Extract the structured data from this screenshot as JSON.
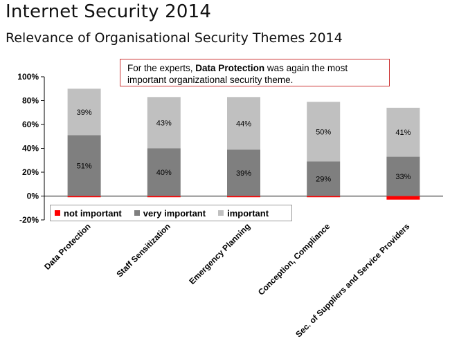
{
  "header": {
    "title": "Internet Security 2014",
    "subtitle": "Relevance of Organisational Security Themes 2014"
  },
  "callout": {
    "prefix": "For the experts, ",
    "highlight": "Data Protection",
    "suffix": " was again the most important organizational security theme."
  },
  "colors": {
    "not_important": "#ff0000",
    "very_important": "#7f7f7f",
    "important": "#c0c0c0",
    "callout_border": "#cc3333"
  },
  "chart_data": {
    "type": "bar",
    "stacked": true,
    "categories": [
      "Data Protection",
      "Staff Sensitization",
      "Emergency Planning",
      "Conception, Compliance",
      "Sec. of Suppliers and Service Providers"
    ],
    "series": [
      {
        "name": "not important",
        "values": [
          -1,
          -1,
          -1,
          -1,
          -3
        ],
        "color": "#ff0000"
      },
      {
        "name": "very important",
        "values": [
          51,
          40,
          39,
          29,
          33
        ],
        "color": "#7f7f7f"
      },
      {
        "name": "important",
        "values": [
          39,
          43,
          44,
          50,
          41
        ],
        "color": "#c0c0c0"
      }
    ],
    "data_labels": {
      "very important": [
        "51%",
        "40%",
        "39%",
        "29%",
        "33%"
      ],
      "important": [
        "39%",
        "43%",
        "44%",
        "50%",
        "41%"
      ]
    },
    "ylim": [
      -20,
      100
    ],
    "yticks": [
      -20,
      0,
      20,
      40,
      60,
      80,
      100
    ],
    "ytick_labels": [
      "-20%",
      "0%",
      "20%",
      "40%",
      "60%",
      "80%",
      "100%"
    ],
    "legend_position": "bottom-left",
    "grid": false
  }
}
